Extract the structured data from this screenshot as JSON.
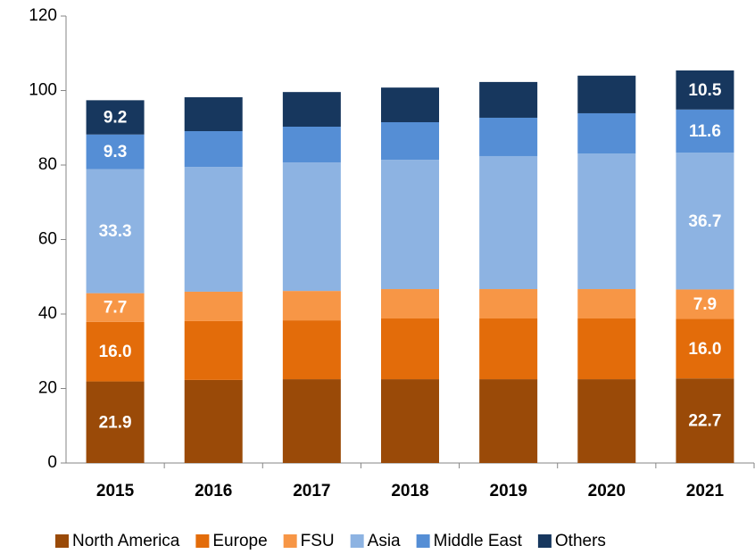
{
  "chart_data": {
    "type": "stacked_bar",
    "categories": [
      "2015",
      "2016",
      "2017",
      "2018",
      "2019",
      "2020",
      "2021"
    ],
    "series": [
      {
        "name": "North America",
        "color": "#9a4a08",
        "values": [
          21.9,
          22.3,
          22.5,
          22.5,
          22.5,
          22.5,
          22.7
        ],
        "value_labels": [
          "21.9",
          null,
          null,
          null,
          null,
          null,
          "22.7"
        ]
      },
      {
        "name": "Europe",
        "color": "#e36c0a",
        "values": [
          16.0,
          15.8,
          15.8,
          16.3,
          16.3,
          16.3,
          16.0
        ],
        "value_labels": [
          "16.0",
          null,
          null,
          null,
          null,
          null,
          "16.0"
        ]
      },
      {
        "name": "FSU",
        "color": "#f79646",
        "values": [
          7.7,
          7.9,
          7.9,
          7.9,
          7.9,
          7.9,
          7.9
        ],
        "value_labels": [
          "7.7",
          null,
          null,
          null,
          null,
          null,
          "7.9"
        ]
      },
      {
        "name": "Asia",
        "color": "#8db3e2",
        "values": [
          33.3,
          33.5,
          34.5,
          34.7,
          35.7,
          36.4,
          36.7
        ],
        "value_labels": [
          "33.3",
          null,
          null,
          null,
          null,
          null,
          "36.7"
        ]
      },
      {
        "name": "Middle East",
        "color": "#558ed5",
        "values": [
          9.3,
          9.6,
          9.6,
          10.1,
          10.3,
          10.8,
          11.6
        ],
        "value_labels": [
          "9.3",
          null,
          null,
          null,
          null,
          null,
          "11.6"
        ]
      },
      {
        "name": "Others",
        "color": "#17375e",
        "values": [
          9.2,
          9.1,
          9.3,
          9.3,
          9.6,
          10.1,
          10.5
        ],
        "value_labels": [
          "9.2",
          null,
          null,
          null,
          null,
          null,
          "10.5"
        ]
      }
    ],
    "ylim": [
      0,
      120
    ],
    "yticks": [
      0,
      20,
      40,
      60,
      80,
      100,
      120
    ],
    "grid": false,
    "legend": "bottom"
  }
}
